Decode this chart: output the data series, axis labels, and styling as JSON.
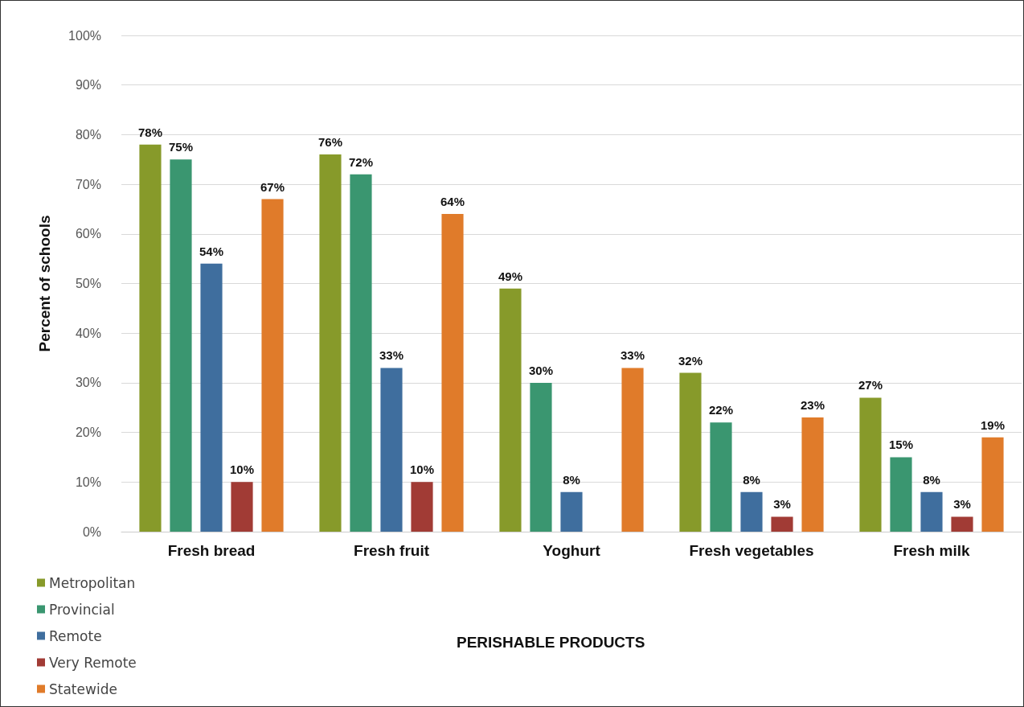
{
  "chart_data": {
    "type": "bar",
    "xlabel": "PERISHABLE PRODUCTS",
    "ylabel": "Percent of schools",
    "categories": [
      "Fresh bread",
      "Fresh fruit",
      "Yoghurt",
      "Fresh vegetables",
      "Fresh milk"
    ],
    "series": [
      {
        "name": "Metropolitan",
        "color": "#879a2a",
        "values": [
          78,
          76,
          49,
          32,
          27
        ],
        "value_labels": [
          "78%",
          "76%",
          "49%",
          "32%",
          "27%"
        ]
      },
      {
        "name": "Provincial",
        "color": "#3a9670",
        "values": [
          75,
          72,
          30,
          22,
          15
        ],
        "value_labels": [
          "75%",
          "72%",
          "30%",
          "22%",
          "15%"
        ]
      },
      {
        "name": "Remote",
        "color": "#3f6e9e",
        "values": [
          54,
          33,
          8,
          8,
          8
        ],
        "value_labels": [
          "54%",
          "33%",
          "8%",
          "8%",
          "8%"
        ]
      },
      {
        "name": "Very Remote",
        "color": "#a13b35",
        "values": [
          10,
          10,
          null,
          3,
          3
        ],
        "value_labels": [
          "10%",
          "10%",
          null,
          "3%",
          "3%"
        ]
      },
      {
        "name": "Statewide",
        "color": "#e07b2a",
        "values": [
          67,
          64,
          33,
          23,
          19
        ],
        "value_labels": [
          "67%",
          "64%",
          "33%",
          "23%",
          "19%"
        ]
      }
    ],
    "ylim": [
      0,
      100
    ],
    "yticks": [
      {
        "value": 0,
        "label": "0%"
      },
      {
        "value": 10,
        "label": "10%"
      },
      {
        "value": 20,
        "label": "20%"
      },
      {
        "value": 30,
        "label": "30%"
      },
      {
        "value": 40,
        "label": "40%"
      },
      {
        "value": 50,
        "label": "50%"
      },
      {
        "value": 60,
        "label": "60%"
      },
      {
        "value": 70,
        "label": "70%"
      },
      {
        "value": 80,
        "label": "80%"
      },
      {
        "value": 90,
        "label": "90%"
      },
      {
        "value": 100,
        "label": "100%"
      }
    ],
    "grid": "y",
    "legend": "bottom left"
  }
}
